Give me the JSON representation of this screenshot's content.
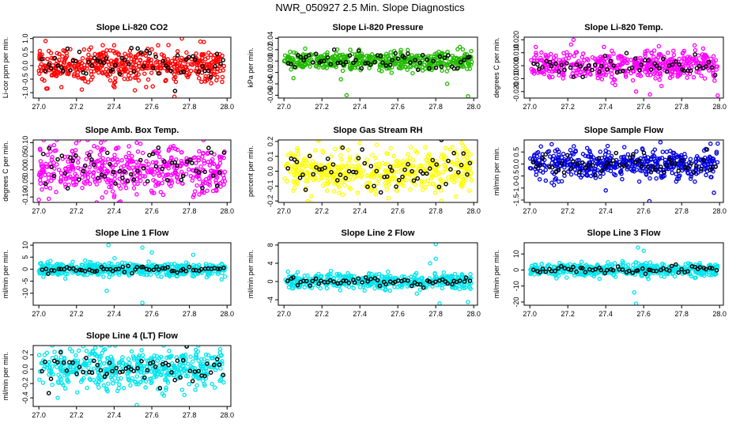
{
  "title": "NWR_050927  2.5 Min. Slope Diagnostics",
  "x_ticks": [
    "27.0",
    "27.2",
    "27.4",
    "27.6",
    "27.8",
    "28.0"
  ],
  "x_range": [
    26.97,
    28.02
  ],
  "chart_data": [
    {
      "type": "scatter",
      "title": "Slope Li-820 CO2",
      "ylabel": "Li-cor ppm per min.",
      "color": "#ff0000",
      "ylim": [
        -1.2,
        1.05
      ],
      "yticks": [
        -1.0,
        -0.5,
        0.0,
        0.5,
        1.0
      ],
      "ytick_labels": [
        "-1.0",
        "-0.5",
        "0.0",
        "0.5",
        "1.0"
      ],
      "spread": 0.32,
      "overlay_spread": 0.28,
      "n": 480,
      "outliers": [
        [
          27.76,
          1.0
        ],
        [
          27.04,
          -0.85
        ],
        [
          27.72,
          -1.15
        ],
        [
          27.4,
          0.75
        ],
        [
          27.12,
          -0.8
        ]
      ]
    },
    {
      "type": "scatter",
      "title": "Slope Li-820 Pressure",
      "ylabel": "kPa per min.",
      "color": "#22bb00",
      "ylim": [
        -0.065,
        0.042
      ],
      "yticks": [
        -0.06,
        -0.04,
        -0.02,
        0.0,
        0.02,
        0.04
      ],
      "ytick_labels": [
        "-0.06",
        "-0.04",
        "-0.02",
        "0.00",
        "0.02",
        "0.04"
      ],
      "spread": 0.008,
      "overlay_spread": 0.008,
      "n": 480,
      "outliers": [
        [
          27.33,
          -0.06
        ],
        [
          27.97,
          -0.062
        ],
        [
          27.05,
          -0.03
        ],
        [
          27.86,
          -0.04
        ],
        [
          27.3,
          -0.032
        ]
      ]
    },
    {
      "type": "scatter",
      "title": "Slope Li-820 Temp.",
      "ylabel": "degrees C per min.",
      "color": "#ff00ff",
      "ylim": [
        -0.025,
        0.022
      ],
      "yticks": [
        -0.02,
        -0.01,
        0.0,
        0.01,
        0.02
      ],
      "ytick_labels": [
        "-0.020",
        "-0.010",
        "0.000",
        "0.010",
        "0.020"
      ],
      "spread": 0.005,
      "overlay_spread": 0.004,
      "n": 480,
      "outliers": [
        [
          27.99,
          -0.023
        ],
        [
          27.45,
          -0.015
        ],
        [
          27.56,
          -0.02
        ],
        [
          27.23,
          0.02
        ],
        [
          27.68,
          0.015
        ]
      ]
    },
    {
      "type": "scatter",
      "title": "Slope Amb. Box Temp.",
      "ylabel": "degrees C per min.",
      "color": "#ff00ff",
      "ylim": [
        -0.12,
        0.11
      ],
      "yticks": [
        -0.1,
        -0.05,
        0.0,
        0.05,
        0.1
      ],
      "ytick_labels": [
        "-0.10",
        "-0.05",
        "0.00",
        "0.05",
        "0.10"
      ],
      "spread": 0.045,
      "overlay_spread": 0.04,
      "n": 480,
      "outliers": [
        [
          27.33,
          0.1
        ],
        [
          27.82,
          -0.1
        ],
        [
          27.0,
          -0.11
        ],
        [
          27.52,
          0.1
        ]
      ]
    },
    {
      "type": "scatter",
      "title": "Slope Gas Stream RH",
      "ylabel": "percent per min.",
      "color": "#ffff00",
      "ylim": [
        -0.21,
        0.21
      ],
      "yticks": [
        -0.2,
        -0.1,
        0.0,
        0.1,
        0.2
      ],
      "ytick_labels": [
        "-0.2",
        "-0.1",
        "0.0",
        "0.1",
        "0.2"
      ],
      "spread": 0.07,
      "overlay_spread": 0.06,
      "n": 480,
      "outliers": [
        [
          27.83,
          -0.2
        ],
        [
          27.4,
          0.19
        ]
      ]
    },
    {
      "type": "scatter",
      "title": "Slope Sample Flow",
      "ylabel": "ml/min per min.",
      "color": "#0000dd",
      "ylim": [
        -1.6,
        1.0
      ],
      "yticks": [
        -1.5,
        -1.0,
        -0.5,
        0.0,
        0.5
      ],
      "ytick_labels": [
        "-1.5",
        "-1.0",
        "-0.5",
        "0.0",
        "0.5"
      ],
      "spread": 0.3,
      "overlay_spread": 0.25,
      "n": 480,
      "outliers": [
        [
          27.63,
          -1.55
        ],
        [
          27.99,
          0.85
        ],
        [
          27.97,
          -1.2
        ],
        [
          27.4,
          -1.1
        ]
      ]
    },
    {
      "type": "scatter",
      "title": "Slope Line 1 Flow",
      "ylabel": "ml/min per min.",
      "color": "#00e5ee",
      "ylim": [
        -15,
        11
      ],
      "yticks": [
        -10,
        -5,
        0,
        5,
        10
      ],
      "ytick_labels": [
        "-10",
        "-5",
        "0",
        "5",
        "10"
      ],
      "spread": 1.4,
      "overlay_spread": 0.6,
      "n": 480,
      "outliers": [
        [
          27.55,
          -14
        ],
        [
          27.37,
          10
        ],
        [
          27.55,
          9
        ],
        [
          27.82,
          6
        ],
        [
          27.6,
          7
        ],
        [
          27.36,
          -9
        ]
      ]
    },
    {
      "type": "scatter",
      "title": "Slope Line 2 Flow",
      "ylabel": "ml/min per min.",
      "color": "#00e5ee",
      "ylim": [
        -5.2,
        8.5
      ],
      "yticks": [
        -4,
        0,
        4,
        8
      ],
      "ytick_labels": [
        "-4",
        "0",
        "4",
        "8"
      ],
      "spread": 0.8,
      "overlay_spread": 0.5,
      "n": 480,
      "outliers": [
        [
          27.8,
          8.2
        ],
        [
          27.82,
          -4.8
        ],
        [
          27.97,
          -4.5
        ],
        [
          27.8,
          5
        ],
        [
          27.77,
          4
        ]
      ]
    },
    {
      "type": "scatter",
      "title": "Slope Line 3 Flow",
      "ylabel": "ml/min per min.",
      "color": "#00e5ee",
      "ylim": [
        -22,
        17
      ],
      "yticks": [
        -20,
        -10,
        0,
        10
      ],
      "ytick_labels": [
        "-20",
        "-10",
        "0",
        "10"
      ],
      "spread": 2.0,
      "overlay_spread": 1.2,
      "n": 480,
      "outliers": [
        [
          27.56,
          -21
        ],
        [
          27.57,
          14
        ],
        [
          27.55,
          -14
        ],
        [
          27.6,
          12
        ]
      ]
    },
    {
      "type": "scatter",
      "title": "Slope Line 4 (LT) Flow",
      "ylabel": "ml/min per min.",
      "color": "#00e5ee",
      "ylim": [
        -0.52,
        0.33
      ],
      "yticks": [
        -0.4,
        -0.2,
        0.0,
        0.2
      ],
      "ytick_labels": [
        "-0.4",
        "-0.2",
        "0.0",
        "0.2"
      ],
      "spread": 0.13,
      "overlay_spread": 0.11,
      "n": 480,
      "outliers": [
        [
          27.52,
          -0.5
        ],
        [
          27.3,
          0.3
        ],
        [
          27.1,
          -0.4
        ]
      ]
    }
  ]
}
